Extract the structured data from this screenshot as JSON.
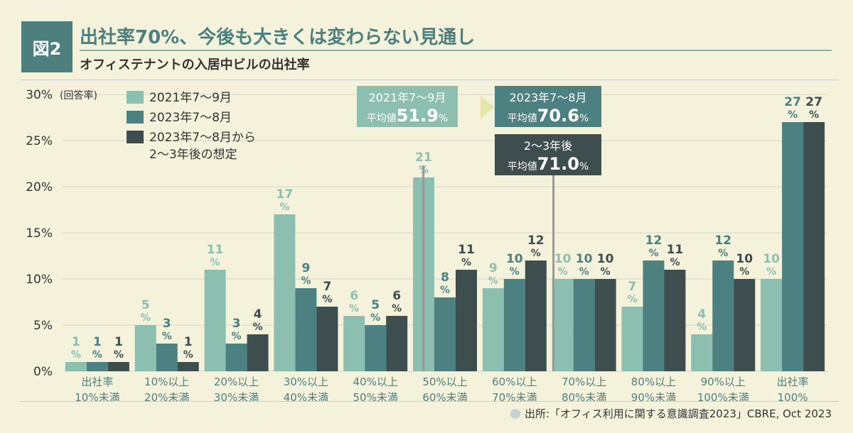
{
  "header": {
    "badge": "図2",
    "title": "出社率70%、今後も大きくは変わらない見通し",
    "subtitle": "オフィステナントの入居中ビルの出社率"
  },
  "colors": {
    "s2021": "#8cbfb0",
    "s2023": "#4d8080",
    "future": "#3e4d4d",
    "accent": "#4d7f7f"
  },
  "chart_data": {
    "type": "bar",
    "ylabel": "(回答率)",
    "ylim": [
      0,
      30
    ],
    "yticks": [
      "0%",
      "5%",
      "10%",
      "15%",
      "20%",
      "25%",
      "30%"
    ],
    "categories": [
      [
        "出社率",
        "10%未満"
      ],
      [
        "10%以上",
        "20%未満"
      ],
      [
        "20%以上",
        "30%未満"
      ],
      [
        "30%以上",
        "40%未満"
      ],
      [
        "40%以上",
        "50%未満"
      ],
      [
        "50%以上",
        "60%未満"
      ],
      [
        "60%以上",
        "70%未満"
      ],
      [
        "70%以上",
        "80%未満"
      ],
      [
        "80%以上",
        "90%未満"
      ],
      [
        "90%以上",
        "100%未満"
      ],
      [
        "出社率",
        "100%"
      ]
    ],
    "series": [
      {
        "name": "2021年7〜9月",
        "values": [
          1,
          5,
          11,
          17,
          6,
          21,
          9,
          10,
          7,
          4,
          10
        ]
      },
      {
        "name": "2023年7〜8月",
        "values": [
          1,
          3,
          3,
          9,
          5,
          8,
          10,
          10,
          12,
          12,
          27
        ]
      },
      {
        "name": "2023年7〜8月から\n2〜3年後の想定",
        "values": [
          1,
          1,
          4,
          7,
          6,
          11,
          12,
          10,
          11,
          10,
          27
        ]
      }
    ],
    "label_unit": "%",
    "annotations": {
      "avg2021": {
        "period": "2021年7〜9月",
        "prefix": "平均値",
        "value": "51.9",
        "unit": "%",
        "x": 51.9
      },
      "avg2023": {
        "period": "2023年7〜8月",
        "prefix": "平均値",
        "value": "70.6",
        "unit": "%",
        "x": 70.6
      },
      "avgFuture": {
        "period": "2〜3年後",
        "prefix": "平均値",
        "value": "71.0",
        "unit": "%",
        "x": 71.0
      }
    }
  },
  "source": "出所:「オフィス利用に関する意識調査2023」CBRE, Oct 2023"
}
